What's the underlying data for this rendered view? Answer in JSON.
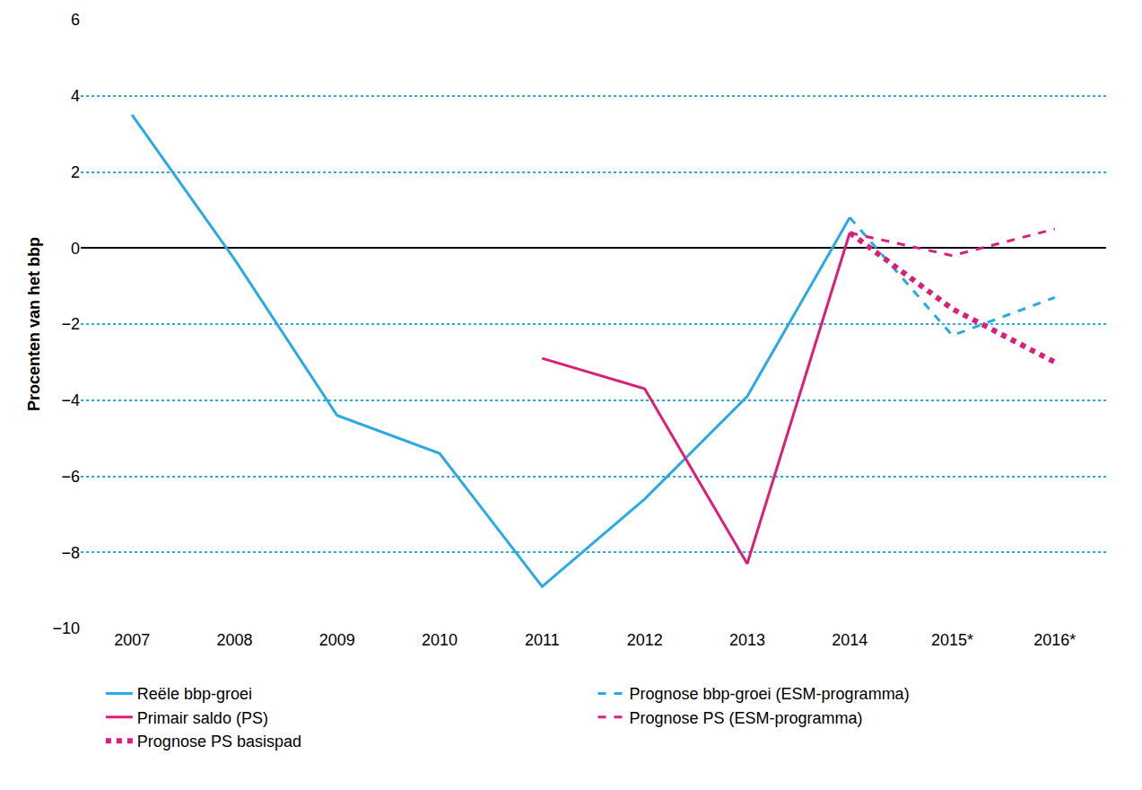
{
  "chart_data": {
    "type": "line",
    "ylabel": "Procenten van het bbp",
    "categories": [
      "2007",
      "2008",
      "2009",
      "2010",
      "2011",
      "2012",
      "2013",
      "2014",
      "2015*",
      "2016*"
    ],
    "ylim": [
      -10,
      6
    ],
    "yticks": [
      -10,
      -8,
      -6,
      -4,
      -2,
      0,
      2,
      4,
      6
    ],
    "grid": true,
    "legend": "bottom",
    "series": [
      {
        "name": "Reële bbp-groei",
        "color": "#29abe2",
        "line_style": "solid",
        "values": [
          3.5,
          -0.3,
          -4.4,
          -5.4,
          -8.9,
          -6.6,
          -3.9,
          0.8,
          null,
          null
        ]
      },
      {
        "name": "Prognose bbp-groei (ESM-programma)",
        "color": "#29abe2",
        "line_style": "dash",
        "values": [
          null,
          null,
          null,
          null,
          null,
          null,
          null,
          0.8,
          -2.3,
          -1.3
        ]
      },
      {
        "name": "Primair saldo (PS)",
        "color": "#dc1e7a",
        "line_style": "solid",
        "values": [
          null,
          null,
          null,
          null,
          -2.9,
          -3.7,
          -8.3,
          0.4,
          null,
          null
        ]
      },
      {
        "name": "Prognose PS (ESM-programma)",
        "color": "#dc1e7a",
        "line_style": "dash",
        "values": [
          null,
          null,
          null,
          null,
          null,
          null,
          null,
          0.4,
          -0.2,
          0.5
        ]
      },
      {
        "name": "Prognose PS basispad",
        "color": "#dc1e7a",
        "line_style": "dot",
        "values": [
          null,
          null,
          null,
          null,
          null,
          null,
          null,
          0.4,
          -1.6,
          -3.0
        ]
      }
    ]
  }
}
